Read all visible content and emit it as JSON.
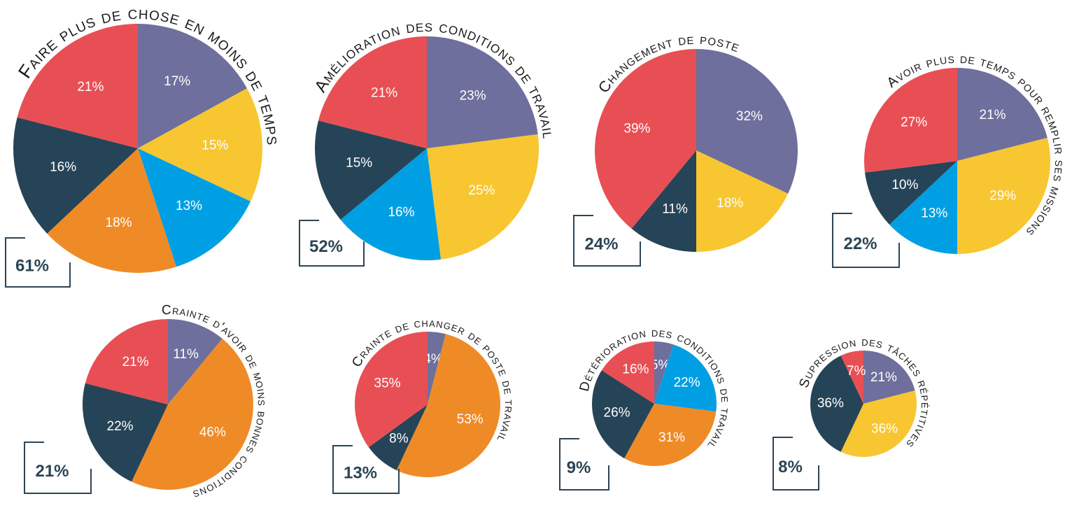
{
  "chart_data": [
    {
      "type": "pie",
      "title": "Faire plus de chose en moins de temps",
      "annotation": "61%",
      "values": [
        17,
        15,
        13,
        18,
        16,
        21
      ],
      "value_labels": [
        "17%",
        "15%",
        "13%",
        "18%",
        "16%",
        "21%"
      ],
      "colors": [
        "#6e6f9c",
        "#f7c631",
        "#009fe3",
        "#ef8b27",
        "#264457",
        "#e84f54"
      ]
    },
    {
      "type": "pie",
      "title": "Amélioration des conditions de travail",
      "annotation": "52%",
      "values": [
        23,
        25,
        16,
        15,
        21
      ],
      "value_labels": [
        "23%",
        "25%",
        "16%",
        "15%",
        "21%"
      ],
      "colors": [
        "#6e6f9c",
        "#f7c631",
        "#009fe3",
        "#264457",
        "#e84f54"
      ]
    },
    {
      "type": "pie",
      "title": "Changement de poste",
      "annotation": "24%",
      "values": [
        32,
        18,
        11,
        39
      ],
      "value_labels": [
        "32%",
        "18%",
        "11%",
        "39%"
      ],
      "colors": [
        "#6e6f9c",
        "#f7c631",
        "#264457",
        "#e84f54"
      ]
    },
    {
      "type": "pie",
      "title": "Avoir plus de temps pour remplir ses missions",
      "annotation": "22%",
      "values": [
        21,
        29,
        13,
        10,
        27
      ],
      "value_labels": [
        "21%",
        "29%",
        "13%",
        "10%",
        "27%"
      ],
      "colors": [
        "#6e6f9c",
        "#f7c631",
        "#009fe3",
        "#264457",
        "#e84f54"
      ]
    },
    {
      "type": "pie",
      "title": "Crainte d'avoir de moins bonnes conditions",
      "annotation": "21%",
      "values": [
        11,
        46,
        22,
        21
      ],
      "value_labels": [
        "11%",
        "46%",
        "22%",
        "21%"
      ],
      "colors": [
        "#6e6f9c",
        "#ef8b27",
        "#264457",
        "#e84f54"
      ]
    },
    {
      "type": "pie",
      "title": "Crainte de changer de poste de travail",
      "annotation": "13%",
      "values": [
        4,
        53,
        8,
        35
      ],
      "value_labels": [
        "4%",
        "53%",
        "8%",
        "35%"
      ],
      "colors": [
        "#6e6f9c",
        "#ef8b27",
        "#264457",
        "#e84f54"
      ]
    },
    {
      "type": "pie",
      "title": "Détérioration des conditions de travail",
      "annotation": "9%",
      "values": [
        5,
        22,
        31,
        26,
        16
      ],
      "value_labels": [
        "5%",
        "22%",
        "31%",
        "26%",
        "16%"
      ],
      "colors": [
        "#6e6f9c",
        "#009fe3",
        "#ef8b27",
        "#264457",
        "#e84f54"
      ]
    },
    {
      "type": "pie",
      "title": "Supression des tâches répétitives",
      "annotation": "8%",
      "values": [
        21,
        36,
        36,
        7
      ],
      "value_labels": [
        "21%",
        "36%",
        "36%",
        "7%"
      ],
      "colors": [
        "#6e6f9c",
        "#f7c631",
        "#264457",
        "#e84f54"
      ]
    }
  ]
}
